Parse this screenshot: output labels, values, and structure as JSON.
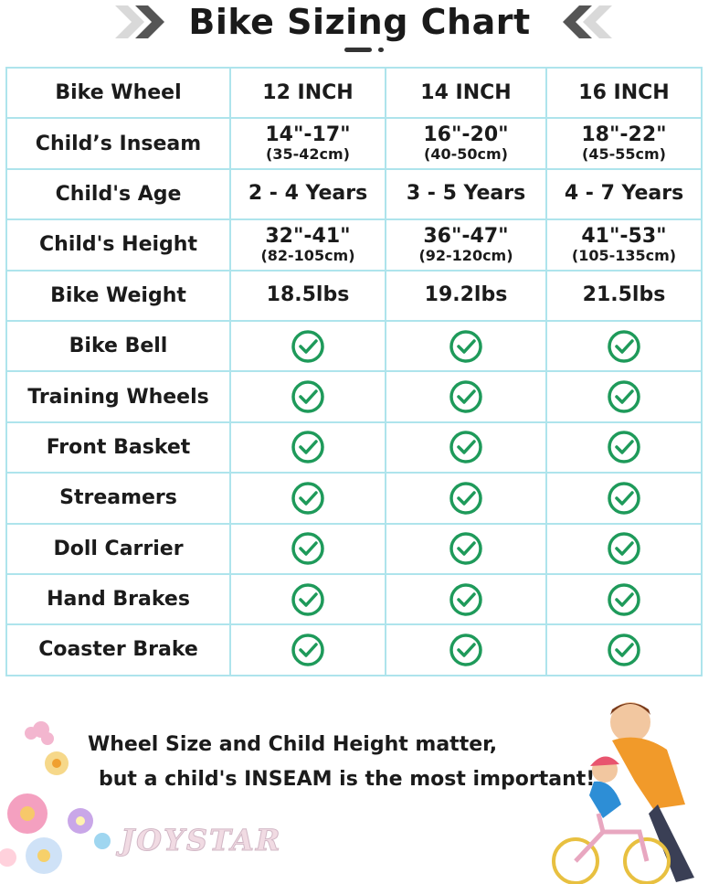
{
  "header": {
    "title": "Bike Sizing Chart"
  },
  "table": {
    "corner_label": "Bike Wheel",
    "columns": [
      "12 INCH",
      "14 INCH",
      "16 INCH"
    ],
    "rows": [
      {
        "label": "Child’s Inseam",
        "cells": [
          {
            "main": "14\"-17\"",
            "sub": "(35-42cm)"
          },
          {
            "main": "16\"-20\"",
            "sub": "(40-50cm)"
          },
          {
            "main": "18\"-22\"",
            "sub": "(45-55cm)"
          }
        ]
      },
      {
        "label": "Child's Age",
        "cells": [
          {
            "main": "2 - 4 Years"
          },
          {
            "main": "3 - 5 Years"
          },
          {
            "main": "4 - 7 Years"
          }
        ]
      },
      {
        "label": "Child's Height",
        "cells": [
          {
            "main": "32\"-41\"",
            "sub": "(82-105cm)"
          },
          {
            "main": "36\"-47\"",
            "sub": "(92-120cm)"
          },
          {
            "main": "41\"-53\"",
            "sub": "(105-135cm)"
          }
        ]
      },
      {
        "label": "Bike Weight",
        "cells": [
          {
            "main": "18.5lbs"
          },
          {
            "main": "19.2lbs"
          },
          {
            "main": "21.5lbs"
          }
        ]
      },
      {
        "label": "Bike Bell",
        "checks": [
          true,
          true,
          true
        ]
      },
      {
        "label": "Training Wheels",
        "checks": [
          true,
          true,
          true
        ]
      },
      {
        "label": "Front Basket",
        "checks": [
          true,
          true,
          true
        ]
      },
      {
        "label": "Streamers",
        "checks": [
          true,
          true,
          true
        ]
      },
      {
        "label": "Doll Carrier",
        "checks": [
          true,
          true,
          true
        ]
      },
      {
        "label": "Hand Brakes",
        "checks": [
          true,
          true,
          true
        ]
      },
      {
        "label": "Coaster Brake",
        "checks": [
          true,
          true,
          true
        ]
      }
    ]
  },
  "footer": {
    "note_line1": "Wheel Size and Child Height matter,",
    "note_line2": "but a child's INSEAM is the most important!",
    "brand": "JOYSTAR"
  },
  "colors": {
    "grid_border": "#aee4ec",
    "check_green": "#1e9a5a",
    "chevron_gray": "#555555"
  },
  "icons": {
    "check": "check-circle-icon",
    "chevron_left": "double-chevron-right-icon",
    "chevron_right": "double-chevron-left-icon"
  }
}
